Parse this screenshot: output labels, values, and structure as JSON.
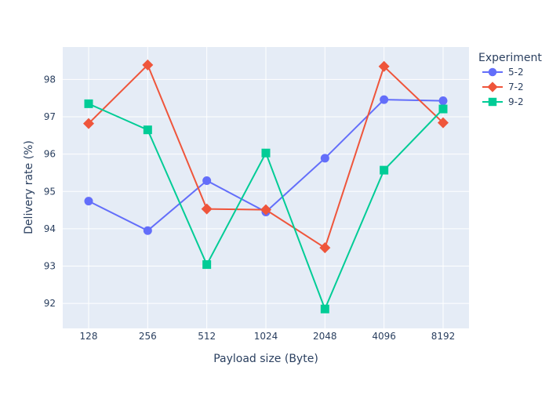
{
  "chart_data": {
    "type": "line",
    "xlabel": "Payload size (Byte)",
    "ylabel": "Delivery rate (%)",
    "categories": [
      "128",
      "256",
      "512",
      "1024",
      "2048",
      "4096",
      "8192"
    ],
    "y_ticks": [
      92,
      93,
      94,
      95,
      96,
      97,
      98
    ],
    "ylim": [
      91.33,
      98.87
    ],
    "grid": true,
    "legend": {
      "title": "Experiment",
      "placement": "top-right"
    },
    "series": [
      {
        "name": "5-2",
        "color": "#636efa",
        "marker": "circle",
        "values": [
          94.74,
          93.95,
          95.29,
          94.45,
          95.89,
          97.46,
          97.43
        ]
      },
      {
        "name": "7-2",
        "color": "#ef553b",
        "marker": "diamond",
        "values": [
          96.82,
          98.39,
          94.53,
          94.51,
          93.49,
          98.35,
          96.84
        ]
      },
      {
        "name": "9-2",
        "color": "#00cc96",
        "marker": "square",
        "values": [
          97.35,
          96.65,
          93.04,
          96.03,
          91.85,
          95.57,
          97.21
        ]
      }
    ]
  }
}
